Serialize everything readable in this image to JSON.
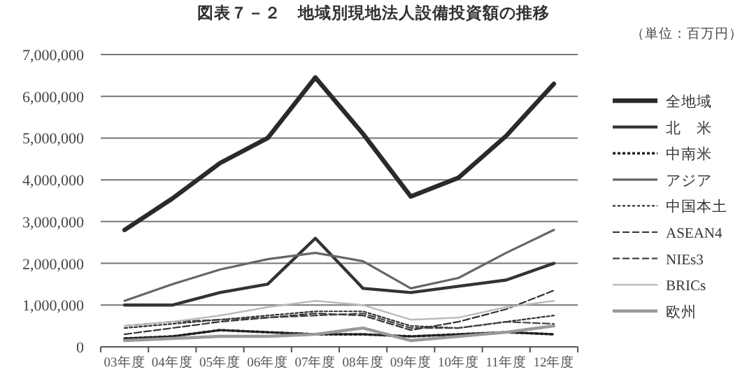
{
  "chart_data": {
    "type": "line",
    "title": "図表７－２　地域別現地法人設備投資額の推移",
    "annotations": [
      "（単位：百万円）"
    ],
    "categories": [
      "03年度",
      "04年度",
      "05年度",
      "06年度",
      "07年度",
      "08年度",
      "09年度",
      "10年度",
      "11年度",
      "12年度"
    ],
    "ylim": [
      0,
      7000000
    ],
    "yticks": [
      {
        "value": 0,
        "label": "0"
      },
      {
        "value": 1000000,
        "label": "1,000,000"
      },
      {
        "value": 2000000,
        "label": "2,000,000"
      },
      {
        "value": 3000000,
        "label": "3,000,000"
      },
      {
        "value": 4000000,
        "label": "4,000,000"
      },
      {
        "value": 5000000,
        "label": "5,000,000"
      },
      {
        "value": 6000000,
        "label": "6,000,000"
      },
      {
        "value": 7000000,
        "label": "7,000,000"
      }
    ],
    "grid": "y",
    "legend": "right",
    "marker": "none",
    "series": [
      {
        "name": "全地域",
        "color": "#2a2a2a",
        "line_style": "solid",
        "values": [
          2800000,
          3550000,
          4400000,
          5000000,
          6450000,
          5100000,
          3600000,
          4050000,
          5050000,
          6300000
        ]
      },
      {
        "name": "北　米",
        "color": "#333333",
        "line_style": "solid",
        "values": [
          1000000,
          1000000,
          1300000,
          1500000,
          2600000,
          1400000,
          1300000,
          1450000,
          1600000,
          2000000
        ]
      },
      {
        "name": "中南米",
        "color": "#222222",
        "line_style": "dotted",
        "values": [
          200000,
          250000,
          400000,
          350000,
          300000,
          300000,
          250000,
          300000,
          350000,
          300000
        ]
      },
      {
        "name": "アジア",
        "color": "#666666",
        "line_style": "solid",
        "values": [
          1100000,
          1500000,
          1850000,
          2100000,
          2250000,
          2050000,
          1400000,
          1650000,
          2250000,
          2800000
        ]
      },
      {
        "name": "中国本土",
        "color": "#333333",
        "line_style": "dotted",
        "values": [
          450000,
          550000,
          650000,
          750000,
          850000,
          850000,
          500000,
          450000,
          600000,
          750000
        ]
      },
      {
        "name": "ASEAN4",
        "color": "#333333",
        "line_style": "dashed",
        "values": [
          300000,
          450000,
          600000,
          700000,
          800000,
          750000,
          400000,
          600000,
          900000,
          1350000
        ]
      },
      {
        "name": "NIEs3",
        "color": "#444444",
        "line_style": "dashed",
        "values": [
          500000,
          600000,
          650000,
          700000,
          750000,
          800000,
          450000,
          450000,
          600000,
          550000
        ]
      },
      {
        "name": "BRICs",
        "color": "#bbbbbb",
        "line_style": "solid",
        "values": [
          500000,
          600000,
          750000,
          950000,
          1100000,
          1000000,
          650000,
          700000,
          950000,
          1100000
        ]
      },
      {
        "name": "欧州",
        "color": "#999999",
        "line_style": "solid",
        "values": [
          150000,
          200000,
          250000,
          250000,
          300000,
          450000,
          150000,
          250000,
          350000,
          500000
        ]
      }
    ]
  }
}
